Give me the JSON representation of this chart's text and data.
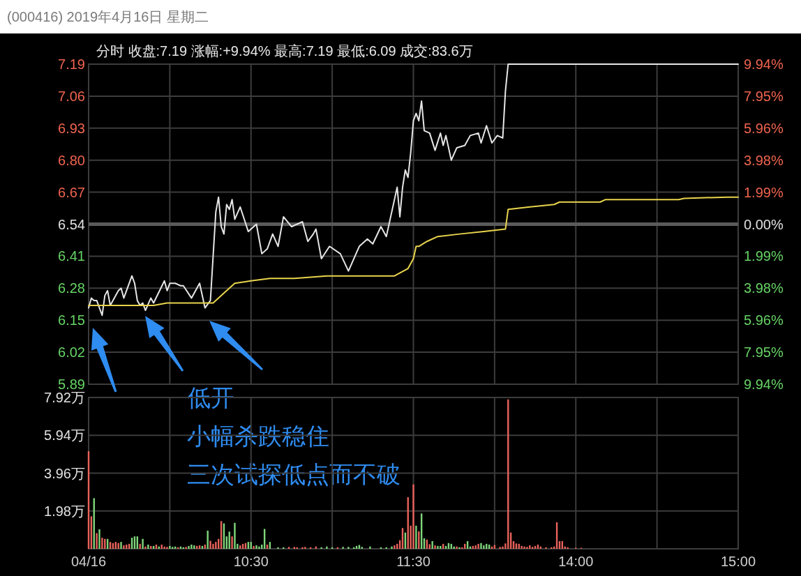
{
  "chart_data": [
    {
      "type": "line",
      "title": "(000416) 2019年4月16日 星期二",
      "subtitle": "分时  收盘:7.19  涨幅:+9.94%  最高:7.19  最低:6.09  成交:83.6万",
      "categories": [
        null,
        null,
        null,
        null,
        null,
        null,
        null,
        null,
        null,
        null,
        null,
        null,
        null,
        null,
        null,
        null,
        null,
        null,
        null,
        null,
        null,
        null,
        null,
        null,
        null,
        null,
        null,
        null,
        null,
        null,
        null,
        null,
        null,
        null,
        null,
        null,
        null,
        null,
        null,
        null,
        null,
        null,
        null,
        null,
        null,
        null,
        null,
        null,
        null,
        null,
        null,
        null,
        null,
        null,
        null,
        null,
        null,
        null,
        null,
        null,
        null,
        null,
        null,
        null,
        null,
        null,
        null,
        null,
        null,
        null,
        null,
        null,
        null,
        null,
        null,
        null,
        null,
        null,
        null,
        null,
        null,
        null,
        null,
        null,
        null,
        null,
        null,
        null,
        null,
        null,
        null,
        null,
        null,
        null,
        null,
        null,
        null,
        null,
        null,
        null,
        null,
        null,
        null,
        null,
        null,
        null,
        null,
        null,
        null,
        null,
        null,
        null,
        null,
        null,
        null,
        null,
        null,
        null,
        null,
        null,
        null,
        null,
        null,
        null,
        null,
        null,
        null,
        null,
        null,
        null,
        null,
        null,
        null,
        null,
        null,
        null,
        null,
        null,
        null,
        null,
        null,
        null,
        null,
        null,
        null,
        null,
        null,
        null,
        null,
        null,
        null,
        null,
        null,
        null,
        null,
        null,
        null,
        null,
        null,
        null,
        null,
        null,
        null,
        null,
        null,
        null,
        null,
        null,
        null,
        null,
        null,
        null,
        null,
        null,
        null,
        null,
        null,
        null,
        null,
        null,
        null,
        null,
        null,
        null,
        null,
        null,
        null,
        null,
        null,
        null,
        null,
        null,
        null,
        null,
        null,
        null,
        null,
        null,
        null,
        null,
        null,
        null,
        null,
        null,
        null,
        null,
        null,
        null,
        null,
        null,
        null,
        null,
        null,
        null,
        null,
        null,
        null,
        null,
        null,
        null,
        null,
        null,
        null,
        null,
        null,
        null,
        null,
        null,
        null,
        null,
        null,
        null,
        null,
        null,
        null,
        null,
        null,
        null,
        null,
        null,
        null
      ],
      "ylim": [
        5.89,
        7.19
      ],
      "yticks": [
        {
          "value": 5.89,
          "label": "5.89"
        },
        {
          "value": 6.02,
          "label": "6.02"
        },
        {
          "value": 6.15,
          "label": "6.15"
        },
        {
          "value": 6.28,
          "label": "6.28"
        },
        {
          "value": 6.41,
          "label": "6.41"
        },
        {
          "value": 6.54,
          "label": "6.54"
        },
        {
          "value": 6.67,
          "label": "6.67"
        },
        {
          "value": 6.8,
          "label": "6.80"
        },
        {
          "value": 6.93,
          "label": "6.93"
        },
        {
          "value": 7.06,
          "label": "7.06"
        },
        {
          "value": 7.19,
          "label": "7.19"
        }
      ],
      "y2lim": [
        -9.94,
        9.94
      ],
      "y2ticks": [
        {
          "value": -9.94,
          "label": "9.94%"
        },
        {
          "value": -7.95,
          "label": "7.95%"
        },
        {
          "value": -5.96,
          "label": "5.96%"
        },
        {
          "value": -3.98,
          "label": "3.98%"
        },
        {
          "value": -1.99,
          "label": "1.99%"
        },
        {
          "value": 0,
          "label": "0.00%"
        },
        {
          "value": 1.99,
          "label": "1.99%"
        },
        {
          "value": 3.98,
          "label": "3.98%"
        },
        {
          "value": 5.96,
          "label": "5.96%"
        },
        {
          "value": 7.95,
          "label": "7.95%"
        },
        {
          "value": 9.94,
          "label": "9.94%"
        }
      ],
      "ref_lines": [
        {
          "axis": "y",
          "value": 6.54,
          "color": "#5a5a5a"
        }
      ],
      "grid": true,
      "tick_labels": "y",
      "annotations": [
        "低开",
        "小幅杀跌稳住",
        "三次试探低点而不破"
      ],
      "series": [
        {
          "color": "#e6e6e6",
          "values": [
            6.2,
            6.24,
            6.23,
            6.23,
            6.2,
            6.17,
            6.25,
            6.27,
            6.21,
            null,
            null,
            6.27,
            6.28,
            6.24,
            null,
            null,
            6.33,
            6.3,
            6.23,
            6.21,
            6.22,
            6.19,
            null,
            6.24,
            6.22,
            null,
            null,
            null,
            6.31,
            6.27,
            6.3,
            null,
            6.3,
            null,
            6.29,
            6.29,
            null,
            null,
            6.24,
            null,
            null,
            6.3,
            null,
            6.2,
            null,
            6.23,
            null,
            6.59,
            6.65,
            6.53,
            6.5,
            6.62,
            6.6,
            6.64,
            6.56,
            null,
            6.61,
            null,
            null,
            6.51,
            null,
            null,
            6.54,
            null,
            6.42,
            null,
            6.44,
            null,
            6.5,
            null,
            6.45,
            null,
            6.57,
            null,
            null,
            6.53,
            null,
            null,
            null,
            6.55,
            null,
            6.47,
            null,
            6.5,
            6.52,
            null,
            6.4,
            null,
            null,
            6.45,
            null,
            null,
            null,
            6.42,
            null,
            null,
            6.35,
            null,
            null,
            null,
            6.45,
            null,
            null,
            6.48,
            null,
            6.46,
            null,
            null,
            6.53,
            null,
            6.49,
            null,
            null,
            null,
            6.69,
            6.57,
            6.69,
            6.76,
            6.73,
            6.83,
            6.96,
            6.99,
            6.96,
            7.04,
            6.92,
            null,
            6.91,
            null,
            6.84,
            null,
            6.91,
            6.86,
            6.9,
            null,
            6.8,
            null,
            6.85,
            null,
            null,
            6.86,
            null,
            6.9,
            null,
            null,
            6.91,
            6.87,
            null,
            6.94,
            null,
            6.87,
            null,
            6.9,
            null,
            6.89,
            7.08,
            7.19,
            null,
            null,
            null,
            null,
            null,
            null,
            null,
            null,
            null,
            null,
            null,
            null,
            null,
            null,
            null,
            null,
            null,
            null,
            null,
            null,
            null,
            null,
            null,
            null,
            null,
            null,
            null,
            null,
            null,
            null,
            null,
            null,
            null,
            null,
            null,
            null,
            null,
            null,
            null,
            null,
            null,
            null,
            null,
            null,
            null,
            null,
            null,
            null,
            null,
            null,
            null,
            null,
            null,
            null,
            null,
            null,
            null,
            null,
            null,
            null,
            null,
            null,
            null,
            null,
            null,
            null,
            null,
            null,
            null,
            null,
            null,
            null,
            null,
            null,
            null,
            null,
            null,
            null,
            null,
            null,
            null,
            null,
            null,
            null,
            7.19
          ]
        },
        {
          "color": "#e8d44d",
          "values": [
            6.21,
            null,
            null,
            null,
            null,
            null,
            null,
            null,
            null,
            null,
            null,
            6.21,
            null,
            null,
            null,
            null,
            null,
            null,
            null,
            null,
            null,
            null,
            null,
            null,
            6.21,
            null,
            null,
            null,
            null,
            6.22,
            null,
            null,
            null,
            null,
            null,
            null,
            null,
            null,
            null,
            null,
            null,
            null,
            null,
            null,
            null,
            null,
            6.22,
            null,
            null,
            null,
            6.26,
            null,
            null,
            null,
            6.3,
            null,
            null,
            null,
            null,
            null,
            6.31,
            null,
            null,
            null,
            null,
            null,
            null,
            6.32,
            null,
            null,
            null,
            null,
            null,
            null,
            null,
            null,
            6.32,
            null,
            null,
            null,
            null,
            null,
            null,
            null,
            null,
            null,
            null,
            null,
            6.33,
            null,
            null,
            null,
            null,
            null,
            null,
            null,
            null,
            null,
            null,
            null,
            null,
            null,
            null,
            null,
            null,
            null,
            null,
            null,
            null,
            null,
            null,
            null,
            null,
            6.33,
            null,
            null,
            null,
            null,
            6.36,
            null,
            6.4,
            6.45,
            6.45,
            null,
            null,
            6.47,
            null,
            null,
            null,
            6.49,
            null,
            null,
            null,
            null,
            null,
            null,
            null,
            6.5,
            null,
            null,
            null,
            null,
            null,
            null,
            null,
            null,
            6.51,
            null,
            null,
            null,
            null,
            null,
            null,
            null,
            6.52,
            6.6,
            null,
            null,
            null,
            null,
            null,
            null,
            null,
            6.61,
            null,
            null,
            null,
            null,
            null,
            null,
            null,
            null,
            6.62,
            null,
            6.63,
            null,
            null,
            null,
            null,
            null,
            null,
            null,
            null,
            null,
            null,
            null,
            null,
            null,
            null,
            6.63,
            null,
            6.64,
            null,
            null,
            null,
            null,
            null,
            null,
            null,
            null,
            null,
            null,
            null,
            null,
            null,
            null,
            null,
            null,
            null,
            null,
            null,
            null,
            null,
            null,
            null,
            null,
            null,
            null,
            6.64,
            null,
            6.645,
            null,
            null,
            null,
            null,
            null,
            null,
            null,
            null,
            null,
            null,
            null,
            null,
            null,
            null,
            null,
            6.65,
            null,
            6.65,
            null,
            6.65
          ]
        }
      ]
    },
    {
      "type": "bar",
      "categories": [
        "04/16",
        null,
        null,
        null,
        null,
        null,
        null,
        null,
        null,
        null,
        null,
        null,
        null,
        null,
        null,
        null,
        null,
        null,
        null,
        null,
        null,
        null,
        null,
        null,
        null,
        null,
        null,
        null,
        null,
        null,
        null,
        null,
        null,
        null,
        null,
        null,
        null,
        null,
        null,
        null,
        null,
        null,
        null,
        null,
        null,
        null,
        null,
        null,
        null,
        null,
        null,
        null,
        null,
        null,
        null,
        null,
        null,
        null,
        null,
        null,
        "10:30",
        null,
        null,
        null,
        null,
        null,
        null,
        null,
        null,
        null,
        null,
        null,
        null,
        null,
        null,
        null,
        null,
        null,
        null,
        null,
        null,
        null,
        null,
        null,
        null,
        null,
        null,
        null,
        null,
        null,
        null,
        null,
        null,
        null,
        null,
        null,
        null,
        null,
        null,
        null,
        null,
        null,
        null,
        null,
        null,
        null,
        null,
        null,
        null,
        null,
        null,
        null,
        null,
        null,
        null,
        null,
        null,
        null,
        null,
        null,
        "11:30",
        null,
        null,
        null,
        null,
        null,
        null,
        null,
        null,
        null,
        null,
        null,
        null,
        null,
        null,
        null,
        null,
        null,
        null,
        null,
        null,
        null,
        null,
        null,
        null,
        null,
        null,
        null,
        null,
        null,
        null,
        null,
        null,
        null,
        null,
        null,
        null,
        null,
        null,
        null,
        null,
        null,
        null,
        null,
        null,
        null,
        null,
        null,
        null,
        null,
        null,
        null,
        null,
        null,
        null,
        null,
        null,
        null,
        null,
        null,
        "14:00",
        null,
        null,
        null,
        null,
        null,
        null,
        null,
        null,
        null,
        null,
        null,
        null,
        null,
        null,
        null,
        null,
        null,
        null,
        null,
        null,
        null,
        null,
        null,
        null,
        null,
        null,
        null,
        null,
        null,
        null,
        null,
        null,
        null,
        null,
        null,
        null,
        null,
        null,
        null,
        null,
        null,
        null,
        null,
        null,
        null,
        null,
        null,
        null,
        null,
        null,
        null,
        null,
        null,
        null,
        null,
        null,
        null,
        null,
        null,
        "15:00"
      ],
      "ylim": [
        0,
        7.92
      ],
      "yticks": [
        {
          "value": 1.98,
          "label": "1.98万"
        },
        {
          "value": 3.96,
          "label": "3.96万"
        },
        {
          "value": 5.94,
          "label": "5.94万"
        },
        {
          "value": 7.92,
          "label": "7.92万"
        }
      ],
      "grid": true,
      "series": [
        {
          "color": "#e8625a",
          "values": [
            5.11,
            1.7,
            null,
            0.82,
            null,
            0.58,
            0.52,
            null,
            0.36,
            0.3,
            0.36,
            0.3,
            null,
            0.18,
            0.22,
            0.26,
            null,
            null,
            null,
            0.26,
            null,
            0.12,
            null,
            0.15,
            null,
            0.22,
            null,
            0.22,
            0.12,
            0.1,
            null,
            null,
            null,
            0.08,
            null,
            null,
            0.1,
            null,
            null,
            null,
            0.15,
            0.18,
            null,
            0.22,
            null,
            0.42,
            0.26,
            0.36,
            0.52,
            1.45,
            null,
            null,
            null,
            0.65,
            null,
            null,
            0.18,
            0.26,
            0.3,
            null,
            null,
            0.15,
            null,
            null,
            null,
            null,
            0.22,
            null,
            null,
            null,
            null,
            null,
            null,
            null,
            0.1,
            null,
            0.1,
            0.08,
            null,
            0.08,
            0.1,
            null,
            0.08,
            null,
            0.12,
            null,
            null,
            null,
            null,
            null,
            null,
            null,
            0.08,
            null,
            null,
            null,
            null,
            null,
            null,
            null,
            null,
            null,
            null,
            null,
            null,
            null,
            null,
            null,
            null,
            null,
            null,
            null,
            null,
            0.18,
            0.26,
            0.45,
            1.09,
            null,
            2.7,
            1.21,
            3.37,
            null,
            0.91,
            null,
            null,
            0.48,
            0.24,
            null,
            0.18,
            null,
            null,
            0.26,
            null,
            null,
            null,
            null,
            0.12,
            null,
            0.08,
            0.26,
            null,
            null,
            0.15,
            0.18,
            0.26,
            null,
            null,
            null,
            null,
            0.12,
            0.2,
            null,
            0.1,
            0.12,
            0.28,
            7.82,
            0.85,
            0.4,
            0.28,
            0.26,
            0.15,
            0.12,
            0.1,
            0.18,
            0.1,
            0.15,
            0.22,
            0.12,
            null,
            0.08,
            null,
            0.08,
            0.12,
            1.39,
            0.4,
            0.4,
            0.12,
            0.08,
            null,
            null,
            0.05,
            null,
            0.05,
            null,
            null,
            null,
            null,
            null,
            null,
            null,
            null,
            null,
            null,
            null,
            null,
            null,
            null,
            null,
            null,
            null,
            null,
            null,
            null,
            null,
            null,
            null,
            null,
            null,
            null,
            null,
            null,
            null,
            null,
            null,
            null,
            null,
            null,
            null,
            null,
            null,
            null,
            null,
            null,
            null,
            null,
            null,
            null,
            null,
            null,
            null,
            null,
            null,
            null,
            null,
            null,
            null,
            null,
            null,
            null,
            null,
            null
          ]
        },
        {
          "color": "#7ed67a",
          "values": [
            null,
            null,
            2.65,
            null,
            1.02,
            null,
            null,
            0.52,
            null,
            null,
            null,
            null,
            0.36,
            null,
            null,
            null,
            0.58,
            0.65,
            0.65,
            null,
            0.52,
            null,
            0.22,
            null,
            0.15,
            null,
            0.12,
            null,
            null,
            null,
            0.15,
            0.1,
            0.12,
            null,
            0.12,
            0.08,
            null,
            0.15,
            0.22,
            0.18,
            null,
            null,
            0.15,
            null,
            0.95,
            null,
            null,
            null,
            null,
            null,
            1.33,
            0.65,
            0.9,
            null,
            1.36,
            0.26,
            null,
            null,
            null,
            0.36,
            0.36,
            null,
            0.18,
            0.12,
            0.22,
            1.04,
            null,
            0.36,
            null,
            null,
            0.08,
            null,
            0.08,
            null,
            null,
            null,
            null,
            null,
            null,
            null,
            null,
            null,
            null,
            null,
            null,
            null,
            0.08,
            null,
            0.12,
            null,
            0.08,
            null,
            null,
            null,
            0.1,
            null,
            0.1,
            null,
            0.08,
            0.15,
            0.2,
            0.1,
            null,
            null,
            0.12,
            null,
            null,
            null,
            0.08,
            null,
            0.08,
            null,
            0.12,
            null,
            null,
            null,
            null,
            0.85,
            null,
            null,
            null,
            1.21,
            null,
            1.85,
            0.55,
            null,
            null,
            0.4,
            null,
            0.15,
            0.15,
            null,
            0.15,
            0.3,
            0.26,
            0.12,
            null,
            0.08,
            null,
            null,
            0.4,
            0.12,
            null,
            null,
            null,
            0.3,
            0.18,
            0.26,
            0.22,
            null,
            null,
            null,
            null,
            null,
            null,
            null,
            null,
            null,
            null,
            null,
            null,
            null,
            null,
            null,
            null,
            null,
            null,
            null,
            null,
            null,
            null,
            null,
            null,
            null,
            null,
            null,
            null,
            null,
            null,
            null,
            null,
            null,
            null,
            null,
            null,
            null,
            null,
            null,
            null,
            null,
            null,
            null,
            null,
            null,
            null,
            null,
            null,
            null,
            null,
            null,
            null,
            null,
            null,
            null,
            null,
            null,
            null,
            null,
            null,
            null,
            null,
            null,
            null,
            null,
            null,
            null,
            null,
            null,
            null,
            null,
            null,
            null,
            null,
            null,
            null,
            null,
            null,
            null,
            null,
            null,
            null,
            null,
            null,
            null,
            null,
            null,
            null,
            null,
            null,
            null,
            null
          ]
        }
      ]
    }
  ]
}
